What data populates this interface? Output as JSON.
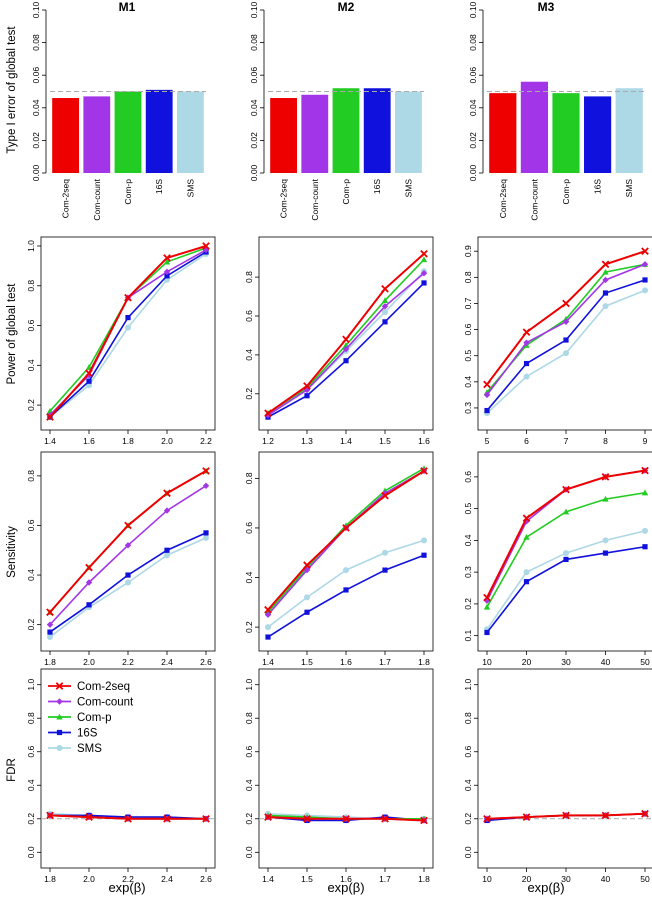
{
  "methods": [
    "Com-2seq",
    "Com-count",
    "Com-p",
    "16S",
    "SMS"
  ],
  "colors": {
    "Com-2seq": "#ee0000",
    "Com-count": "#a335e8",
    "Com-p": "#22cc22",
    "16S": "#1111dd",
    "SMS": "#add8e6"
  },
  "markers": {
    "Com-2seq": "cross",
    "Com-count": "diamond",
    "Com-p": "triangle",
    "16S": "square",
    "SMS": "circle"
  },
  "col_titles": [
    "M1",
    "M2",
    "M3"
  ],
  "row_labels": [
    "Type I error of global test",
    "Power of global test",
    "Sensitivity",
    "FDR"
  ],
  "xlabel": "exp(β)",
  "chart_data": [
    {
      "type": "bar",
      "title": "M1",
      "row": 0,
      "col": 0,
      "categories": [
        "Com-2seq",
        "Com-count",
        "Com-p",
        "16S",
        "SMS"
      ],
      "values": [
        0.046,
        0.047,
        0.05,
        0.051,
        0.05
      ],
      "ylim": [
        0,
        0.1
      ],
      "yticks": [
        0.0,
        0.02,
        0.04,
        0.06,
        0.08,
        0.1
      ],
      "yticklabels": [
        "0.00",
        "0.02",
        "0.04",
        "0.06",
        "0.08",
        "0.10"
      ],
      "reference_line": 0.05,
      "ylabel": "Type I error of global test"
    },
    {
      "type": "bar",
      "title": "M2",
      "row": 0,
      "col": 1,
      "categories": [
        "Com-2seq",
        "Com-count",
        "Com-p",
        "16S",
        "SMS"
      ],
      "values": [
        0.046,
        0.048,
        0.052,
        0.052,
        0.05
      ],
      "ylim": [
        0,
        0.1
      ],
      "yticks": [
        0.0,
        0.02,
        0.04,
        0.06,
        0.08,
        0.1
      ],
      "yticklabels": [
        "0.00",
        "0.02",
        "0.04",
        "0.06",
        "0.08",
        "0.10"
      ],
      "reference_line": 0.05
    },
    {
      "type": "bar",
      "title": "M3",
      "row": 0,
      "col": 2,
      "categories": [
        "Com-2seq",
        "Com-count",
        "Com-p",
        "16S",
        "SMS"
      ],
      "values": [
        0.049,
        0.056,
        0.049,
        0.047,
        0.052
      ],
      "ylim": [
        0,
        0.1
      ],
      "yticks": [
        0.0,
        0.02,
        0.04,
        0.06,
        0.08,
        0.1
      ],
      "yticklabels": [
        "0.00",
        "0.02",
        "0.04",
        "0.06",
        "0.08",
        "0.10"
      ],
      "reference_line": 0.05
    },
    {
      "type": "line",
      "row": 1,
      "col": 0,
      "ylabel": "Power of global test",
      "x": [
        1.4,
        1.6,
        1.8,
        2.0,
        2.2
      ],
      "xticklabels": [
        "1.4",
        "1.6",
        "1.8",
        "2.0",
        "2.2"
      ],
      "yticks": [
        0.2,
        0.4,
        0.6,
        0.8,
        1.0
      ],
      "yticklabels": [
        "0.2",
        "0.4",
        "0.6",
        "0.8",
        "1.0"
      ],
      "xlim": [
        1.4,
        2.2
      ],
      "ylim": [
        0.12,
        1.0
      ],
      "series": [
        {
          "name": "SMS",
          "values": [
            0.14,
            0.3,
            0.59,
            0.83,
            0.96
          ]
        },
        {
          "name": "16S",
          "values": [
            0.14,
            0.32,
            0.64,
            0.85,
            0.97
          ]
        },
        {
          "name": "Com-p",
          "values": [
            0.17,
            0.39,
            0.74,
            0.92,
            0.99
          ]
        },
        {
          "name": "Com-count",
          "values": [
            0.15,
            0.35,
            0.74,
            0.87,
            0.98
          ]
        },
        {
          "name": "Com-2seq",
          "values": [
            0.14,
            0.36,
            0.74,
            0.94,
            1.0
          ]
        }
      ]
    },
    {
      "type": "line",
      "row": 1,
      "col": 1,
      "x": [
        1.2,
        1.3,
        1.4,
        1.5,
        1.6
      ],
      "xticklabels": [
        "1.2",
        "1.3",
        "1.4",
        "1.5",
        "1.6"
      ],
      "yticks": [
        0.2,
        0.4,
        0.6,
        0.8
      ],
      "yticklabels": [
        "0.2",
        "0.4",
        "0.6",
        "0.8"
      ],
      "xlim": [
        1.2,
        1.6
      ],
      "ylim": [
        0.06,
        0.96
      ],
      "series": [
        {
          "name": "SMS",
          "values": [
            0.09,
            0.22,
            0.42,
            0.62,
            0.83
          ]
        },
        {
          "name": "16S",
          "values": [
            0.08,
            0.19,
            0.37,
            0.57,
            0.77
          ]
        },
        {
          "name": "Com-p",
          "values": [
            0.1,
            0.23,
            0.45,
            0.68,
            0.89
          ]
        },
        {
          "name": "Com-count",
          "values": [
            0.09,
            0.22,
            0.43,
            0.65,
            0.82
          ]
        },
        {
          "name": "Com-2seq",
          "values": [
            0.1,
            0.24,
            0.48,
            0.74,
            0.92
          ]
        }
      ]
    },
    {
      "type": "line",
      "row": 1,
      "col": 2,
      "x": [
        5,
        6,
        7,
        8,
        9
      ],
      "xticklabels": [
        "5",
        "6",
        "7",
        "8",
        "9"
      ],
      "yticks": [
        0.3,
        0.4,
        0.5,
        0.6,
        0.7,
        0.8,
        0.9
      ],
      "yticklabels": [
        "0.3",
        "0.4",
        "0.5",
        "0.6",
        "0.7",
        "0.8",
        "0.9"
      ],
      "xlim": [
        5,
        9
      ],
      "ylim": [
        0.25,
        0.92
      ],
      "series": [
        {
          "name": "SMS",
          "values": [
            0.28,
            0.42,
            0.51,
            0.69,
            0.75
          ]
        },
        {
          "name": "16S",
          "values": [
            0.29,
            0.47,
            0.56,
            0.74,
            0.79
          ]
        },
        {
          "name": "Com-p",
          "values": [
            0.36,
            0.54,
            0.64,
            0.82,
            0.85
          ]
        },
        {
          "name": "Com-count",
          "values": [
            0.35,
            0.55,
            0.63,
            0.79,
            0.85
          ]
        },
        {
          "name": "Com-2seq",
          "values": [
            0.39,
            0.59,
            0.7,
            0.85,
            0.9
          ]
        }
      ]
    },
    {
      "type": "line",
      "row": 2,
      "col": 0,
      "ylabel": "Sensitivity",
      "x": [
        1.8,
        2.0,
        2.2,
        2.4,
        2.6
      ],
      "xticklabels": [
        "1.8",
        "2.0",
        "2.2",
        "2.4",
        "2.6"
      ],
      "yticks": [
        0.2,
        0.4,
        0.6,
        0.8
      ],
      "yticklabels": [
        "0.2",
        "0.4",
        "0.6",
        "0.8"
      ],
      "xlim": [
        1.8,
        2.6
      ],
      "ylim": [
        0.13,
        0.86
      ],
      "series": [
        {
          "name": "SMS",
          "values": [
            0.15,
            0.27,
            0.37,
            0.48,
            0.55
          ]
        },
        {
          "name": "16S",
          "values": [
            0.17,
            0.28,
            0.4,
            0.5,
            0.57
          ]
        },
        {
          "name": "Com-p",
          "values": [
            0.25,
            0.43,
            0.6,
            0.73,
            0.82
          ]
        },
        {
          "name": "Com-count",
          "values": [
            0.2,
            0.37,
            0.52,
            0.66,
            0.76
          ]
        },
        {
          "name": "Com-2seq",
          "values": [
            0.25,
            0.43,
            0.6,
            0.73,
            0.82
          ]
        }
      ]
    },
    {
      "type": "line",
      "row": 2,
      "col": 1,
      "x": [
        1.4,
        1.5,
        1.6,
        1.7,
        1.8
      ],
      "xticklabels": [
        "1.4",
        "1.5",
        "1.6",
        "1.7",
        "1.8"
      ],
      "yticks": [
        0.2,
        0.4,
        0.6,
        0.8
      ],
      "yticklabels": [
        "0.2",
        "0.4",
        "0.6",
        "0.8"
      ],
      "xlim": [
        1.4,
        1.8
      ],
      "ylim": [
        0.14,
        0.87
      ],
      "series": [
        {
          "name": "SMS",
          "values": [
            0.2,
            0.32,
            0.43,
            0.5,
            0.55
          ]
        },
        {
          "name": "16S",
          "values": [
            0.16,
            0.26,
            0.35,
            0.43,
            0.49
          ]
        },
        {
          "name": "Com-p",
          "values": [
            0.26,
            0.44,
            0.61,
            0.75,
            0.84
          ]
        },
        {
          "name": "Com-count",
          "values": [
            0.25,
            0.43,
            0.6,
            0.74,
            0.83
          ]
        },
        {
          "name": "Com-2seq",
          "values": [
            0.27,
            0.45,
            0.6,
            0.73,
            0.83
          ]
        }
      ]
    },
    {
      "type": "line",
      "row": 2,
      "col": 2,
      "x": [
        10,
        20,
        30,
        40,
        50
      ],
      "xticklabels": [
        "10",
        "20",
        "30",
        "40",
        "50"
      ],
      "yticks": [
        0.1,
        0.2,
        0.3,
        0.4,
        0.5,
        0.6
      ],
      "yticklabels": [
        "0.1",
        "0.2",
        "0.3",
        "0.4",
        "0.5",
        "0.6"
      ],
      "xlim": [
        10,
        50
      ],
      "ylim": [
        0.08,
        0.65
      ],
      "series": [
        {
          "name": "SMS",
          "values": [
            0.12,
            0.3,
            0.36,
            0.4,
            0.43
          ]
        },
        {
          "name": "16S",
          "values": [
            0.11,
            0.27,
            0.34,
            0.36,
            0.38
          ]
        },
        {
          "name": "Com-p",
          "values": [
            0.19,
            0.41,
            0.49,
            0.53,
            0.55
          ]
        },
        {
          "name": "Com-count",
          "values": [
            0.21,
            0.46,
            0.56,
            0.6,
            0.62
          ]
        },
        {
          "name": "Com-2seq",
          "values": [
            0.22,
            0.47,
            0.56,
            0.6,
            0.62
          ]
        }
      ]
    },
    {
      "type": "line",
      "row": 3,
      "col": 0,
      "ylabel": "FDR",
      "x": [
        1.8,
        2.0,
        2.2,
        2.4,
        2.6
      ],
      "xticklabels": [
        "1.8",
        "2.0",
        "2.2",
        "2.4",
        "2.6"
      ],
      "yticks": [
        0.0,
        0.2,
        0.4,
        0.6,
        0.8,
        1.0
      ],
      "yticklabels": [
        "0.0",
        "0.2",
        "0.4",
        "0.6",
        "0.8",
        "1.0"
      ],
      "xlim": [
        1.8,
        2.6
      ],
      "ylim": [
        -0.04,
        1.04
      ],
      "reference_line": 0.2,
      "legend": {
        "position": "top-left",
        "entries": [
          "Com-2seq",
          "Com-count",
          "Com-p",
          "16S",
          "SMS"
        ]
      },
      "series": [
        {
          "name": "SMS",
          "values": [
            0.23,
            0.22,
            0.21,
            0.21,
            0.2
          ]
        },
        {
          "name": "16S",
          "values": [
            0.22,
            0.22,
            0.21,
            0.21,
            0.2
          ]
        },
        {
          "name": "Com-p",
          "values": [
            0.22,
            0.21,
            0.2,
            0.2,
            0.2
          ]
        },
        {
          "name": "Com-count",
          "values": [
            0.22,
            0.21,
            0.2,
            0.2,
            0.2
          ]
        },
        {
          "name": "Com-2seq",
          "values": [
            0.22,
            0.21,
            0.2,
            0.2,
            0.2
          ]
        }
      ]
    },
    {
      "type": "line",
      "row": 3,
      "col": 1,
      "x": [
        1.4,
        1.5,
        1.6,
        1.7,
        1.8
      ],
      "xticklabels": [
        "1.4",
        "1.5",
        "1.6",
        "1.7",
        "1.8"
      ],
      "yticks": [
        0.0,
        0.2,
        0.4,
        0.6,
        0.8,
        1.0
      ],
      "yticklabels": [
        "0.0",
        "0.2",
        "0.4",
        "0.6",
        "0.8",
        "1.0"
      ],
      "xlim": [
        1.4,
        1.8
      ],
      "ylim": [
        -0.04,
        1.04
      ],
      "reference_line": 0.2,
      "series": [
        {
          "name": "SMS",
          "values": [
            0.23,
            0.22,
            0.21,
            0.2,
            0.2
          ]
        },
        {
          "name": "16S",
          "values": [
            0.21,
            0.19,
            0.19,
            0.21,
            0.19
          ]
        },
        {
          "name": "Com-p",
          "values": [
            0.22,
            0.21,
            0.2,
            0.2,
            0.2
          ]
        },
        {
          "name": "Com-count",
          "values": [
            0.21,
            0.2,
            0.2,
            0.2,
            0.19
          ]
        },
        {
          "name": "Com-2seq",
          "values": [
            0.21,
            0.2,
            0.2,
            0.2,
            0.19
          ]
        }
      ]
    },
    {
      "type": "line",
      "row": 3,
      "col": 2,
      "x": [
        10,
        20,
        30,
        40,
        50
      ],
      "xticklabels": [
        "10",
        "20",
        "30",
        "40",
        "50"
      ],
      "yticks": [
        0.0,
        0.2,
        0.4,
        0.6,
        0.8,
        1.0
      ],
      "yticklabels": [
        "0.0",
        "0.2",
        "0.4",
        "0.6",
        "0.8",
        "1.0"
      ],
      "xlim": [
        10,
        50
      ],
      "ylim": [
        -0.04,
        1.04
      ],
      "reference_line": 0.2,
      "series": [
        {
          "name": "SMS",
          "values": [
            0.2,
            0.21,
            0.22,
            0.22,
            0.23
          ]
        },
        {
          "name": "16S",
          "values": [
            0.19,
            0.21,
            0.22,
            0.22,
            0.23
          ]
        },
        {
          "name": "Com-p",
          "values": [
            0.2,
            0.21,
            0.22,
            0.22,
            0.23
          ]
        },
        {
          "name": "Com-count",
          "values": [
            0.2,
            0.21,
            0.22,
            0.22,
            0.23
          ]
        },
        {
          "name": "Com-2seq",
          "values": [
            0.2,
            0.21,
            0.22,
            0.22,
            0.23
          ]
        }
      ]
    }
  ]
}
